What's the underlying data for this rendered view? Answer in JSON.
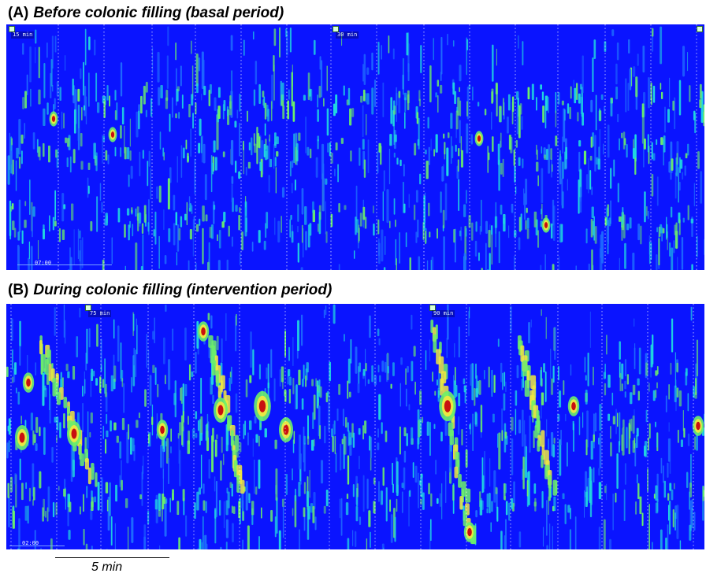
{
  "panels": [
    {
      "label": "(A)",
      "title": "Before colonic filling (basal period)",
      "tags": [
        "15 min",
        "30 min"
      ],
      "time_label": "07:00"
    },
    {
      "label": "(B)",
      "title": "During colonic filling (intervention period)",
      "tags": [
        "75 min",
        "90 min"
      ],
      "time_label": "02:00"
    }
  ],
  "scale_bar": {
    "label": "5 min"
  },
  "colors": {
    "background": "#0a14ff",
    "low": "#1e6bff",
    "mid": "#20d8e0",
    "high_green": "#6cf06a",
    "yellow": "#f0e840",
    "red": "#c81010",
    "gridline": "#ffffff"
  },
  "chart_data": [
    {
      "type": "heatmap",
      "title": "Before colonic filling (basal period)",
      "xlabel": "",
      "ylabel": "",
      "colormap": "jet"
    },
    {
      "type": "heatmap",
      "title": "During colonic filling (intervention period)",
      "xlabel": "",
      "ylabel": "",
      "colormap": "jet"
    }
  ]
}
